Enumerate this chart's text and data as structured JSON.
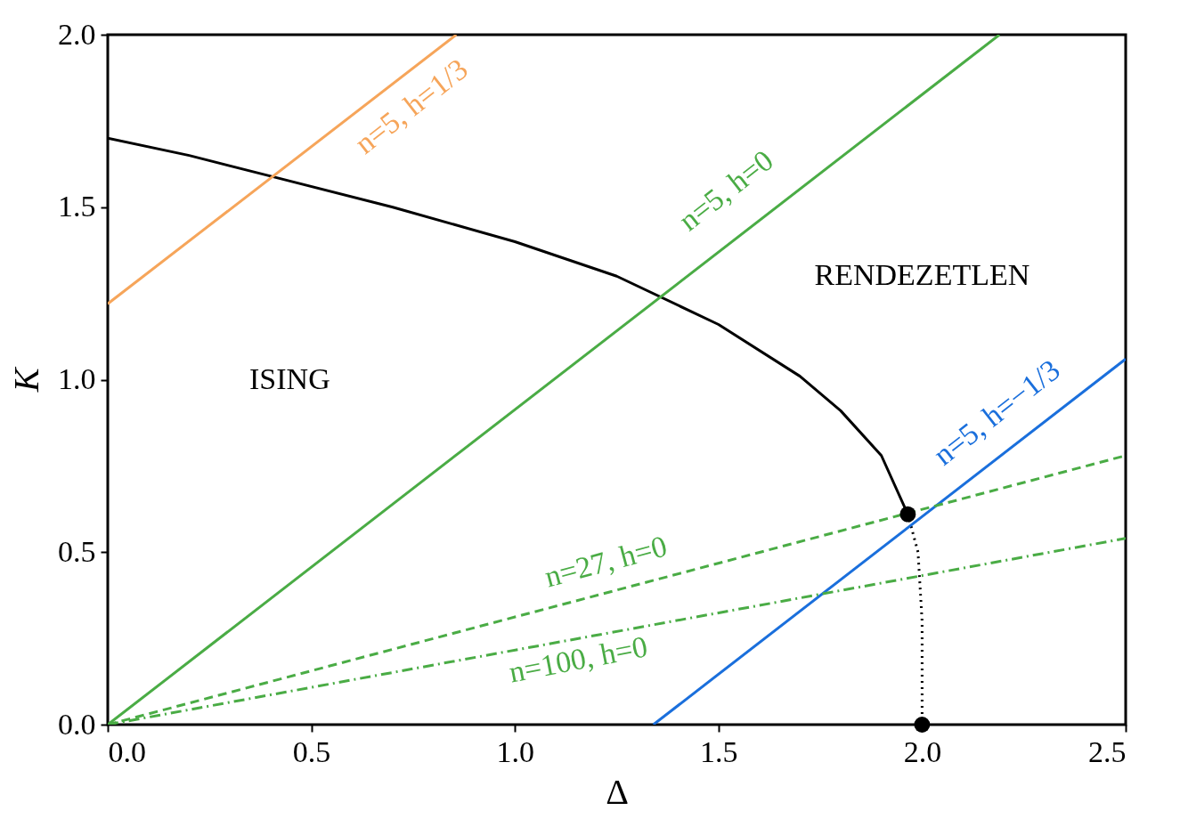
{
  "chart_data": {
    "type": "line",
    "xlabel": "Δ",
    "ylabel": "K",
    "xlim": [
      0,
      2.5
    ],
    "ylim": [
      0,
      2
    ],
    "xticks": [
      {
        "value": 0,
        "label": "0.0"
      },
      {
        "value": 0.5,
        "label": "0.5"
      },
      {
        "value": 1,
        "label": "1.0"
      },
      {
        "value": 1.5,
        "label": "1.5"
      },
      {
        "value": 2,
        "label": "2.0"
      },
      {
        "value": 2.5,
        "label": "2.5"
      }
    ],
    "yticks": [
      {
        "value": 0,
        "label": "0.0"
      },
      {
        "value": 0.5,
        "label": "0.5"
      },
      {
        "value": 1,
        "label": "1.0"
      },
      {
        "value": 1.5,
        "label": "1.5"
      },
      {
        "value": 2,
        "label": "2.0"
      }
    ],
    "grid": false,
    "series": [
      {
        "color": "#000000",
        "line_style": "solid",
        "x": [
          0,
          0.2,
          0.4,
          0.7,
          1.0,
          1.25,
          1.5,
          1.7,
          1.8,
          1.9,
          1.965
        ],
        "values": [
          1.7,
          1.65,
          1.59,
          1.5,
          1.4,
          1.3,
          1.16,
          1.01,
          0.91,
          0.78,
          0.61
        ]
      },
      {
        "color": "#000000",
        "line_style": "dotted",
        "x": [
          1.965,
          1.99,
          2.0,
          2.0
        ],
        "values": [
          0.61,
          0.5,
          0.3,
          0
        ]
      },
      {
        "color": "#f6a55a",
        "line_style": "solid",
        "x": [
          0,
          0.856
        ],
        "values": [
          1.22,
          2.0
        ]
      },
      {
        "color": "#4aac45",
        "line_style": "solid",
        "x": [
          0,
          2.19
        ],
        "values": [
          0,
          2.0
        ]
      },
      {
        "color": "#1a6fdc",
        "line_style": "solid",
        "x": [
          1.34,
          2.5
        ],
        "values": [
          0,
          1.06
        ]
      },
      {
        "color": "#4aac45",
        "line_style": "dashed",
        "x": [
          0,
          2.5
        ],
        "values": [
          0,
          0.78
        ]
      },
      {
        "color": "#4aac45",
        "line_style": "dashdot",
        "x": [
          0,
          2.5
        ],
        "values": [
          0,
          0.54
        ]
      },
      {
        "type": "scatter",
        "marker": "circle",
        "color": "#000000",
        "x": [
          1.965,
          2.0
        ],
        "values": [
          0.61,
          0
        ]
      }
    ],
    "annotations": [
      "n=5, h=1/3",
      "n=5, h=0",
      "RENDEZETLEN",
      "ISING",
      "n=5, h=−1/3",
      "n=27, h=0",
      "n=100, h=0"
    ]
  }
}
